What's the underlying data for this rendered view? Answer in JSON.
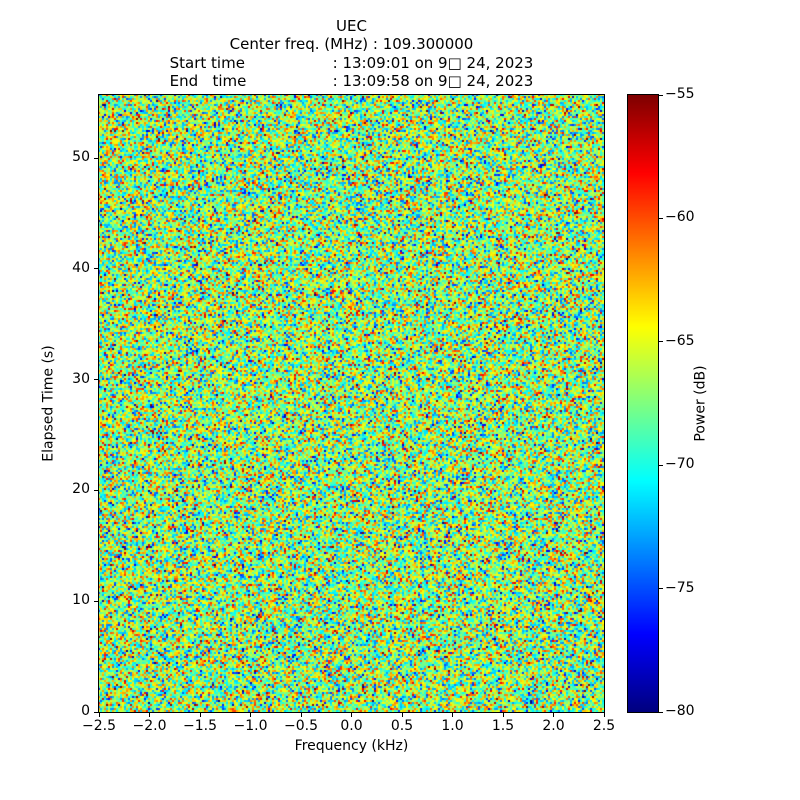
{
  "title": {
    "line1": "UEC",
    "center_freq_line": "Center freq. (MHz) : 109.300000",
    "start_time_label": "Start time",
    "start_time_value": ": 13:09:01 on 9□ 24, 2023",
    "end_time_label": "End   time",
    "end_time_value": ": 13:09:58 on 9□ 24, 2023"
  },
  "chart_data": {
    "type": "heatmap",
    "title": "UEC",
    "subtitle_lines": [
      "Center freq. (MHz) : 109.300000",
      "Start time        : 13:09:01 on 9□ 24, 2023",
      "End   time        : 13:09:58 on 9□ 24, 2023"
    ],
    "xlabel": "Frequency (kHz)",
    "ylabel": "Elapsed Time (s)",
    "xlim": [
      -2.5,
      2.5
    ],
    "ylim": [
      0,
      55.7
    ],
    "xticks": [
      -2.5,
      -2.0,
      -1.5,
      -1.0,
      -0.5,
      0.0,
      0.5,
      1.0,
      1.5,
      2.0,
      2.5
    ],
    "xtick_labels": [
      "−2.5",
      "−2.0",
      "−1.5",
      "−1.0",
      "−0.5",
      "0.0",
      "0.5",
      "1.0",
      "1.5",
      "2.0",
      "2.5"
    ],
    "yticks": [
      0,
      10,
      20,
      30,
      40,
      50
    ],
    "ytick_labels": [
      "0",
      "10",
      "20",
      "30",
      "40",
      "50"
    ],
    "grid": false,
    "colormap": "jet",
    "clim": [
      -80,
      -55
    ],
    "colorbar": {
      "label": "Power (dB)",
      "ticks": [
        -80,
        -75,
        -70,
        -65,
        -60,
        -55
      ],
      "tick_labels": [
        "−80",
        "−75",
        "−70",
        "−65",
        "−60",
        "−55"
      ],
      "position": "right"
    },
    "data_description": "Uniform random noise spectrogram (waterfall), no visible signal features; power values fluctuate around -67 dB over the whole frequency/time extent.",
    "noise_model": {
      "distribution": "gaussian",
      "mean_db": -67,
      "std_db": 4.3,
      "cols": 253,
      "rows": 309,
      "seed": 20230924
    }
  }
}
